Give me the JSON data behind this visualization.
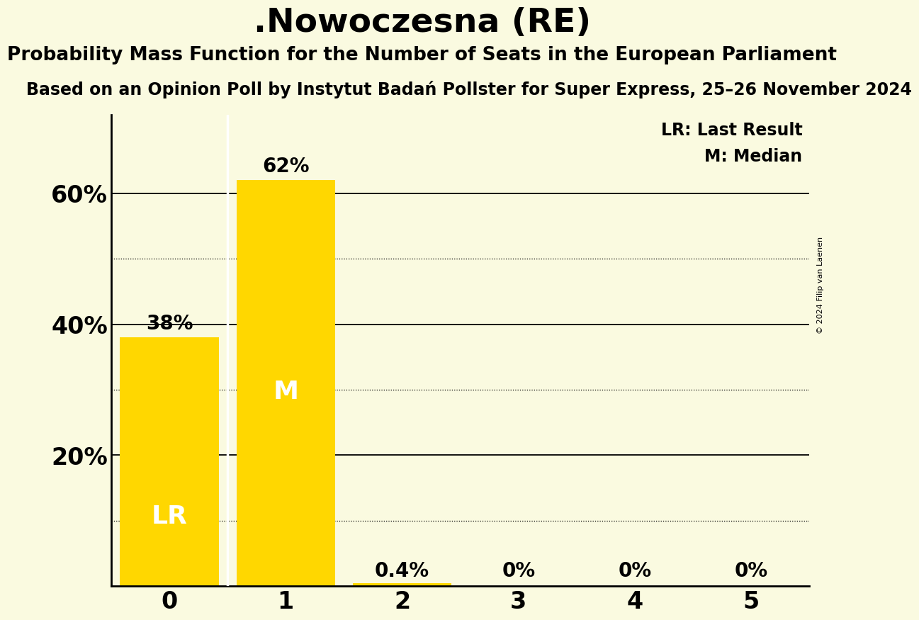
{
  "title": ".Nowoczesna (RE)",
  "subtitle": "Probability Mass Function for the Number of Seats in the European Parliament",
  "source_line": "Based on an Opinion Poll by Instytut Badań Pollster for Super Express, 25–26 November 2024",
  "copyright": "© 2024 Filip van Laenen",
  "categories": [
    0,
    1,
    2,
    3,
    4,
    5
  ],
  "values": [
    0.38,
    0.62,
    0.004,
    0.0,
    0.0,
    0.0
  ],
  "bar_labels": [
    "38%",
    "62%",
    "0.4%",
    "0%",
    "0%",
    "0%"
  ],
  "bar_color": "#FFD700",
  "background_color": "#FAFAE0",
  "lr_bar": 0,
  "median_bar": 1,
  "lr_label": "LR",
  "median_label": "M",
  "legend_lr": "LR: Last Result",
  "legend_m": "M: Median",
  "solid_yticks": [
    0.2,
    0.4,
    0.6
  ],
  "dotted_yticks": [
    0.1,
    0.3,
    0.5
  ],
  "ytick_labels_pos": [
    0.2,
    0.4,
    0.6
  ],
  "ytick_labels_str": [
    "20%",
    "40%",
    "60%"
  ],
  "ylim": [
    0,
    0.72
  ],
  "title_fontsize": 34,
  "subtitle_fontsize": 19,
  "source_fontsize": 17,
  "bar_label_fontsize": 20,
  "axis_tick_fontsize": 24,
  "inner_label_fontsize": 26,
  "legend_fontsize": 17
}
